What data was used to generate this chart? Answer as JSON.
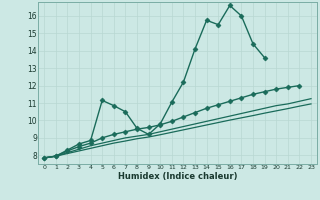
{
  "title": "",
  "xlabel": "Humidex (Indice chaleur)",
  "bg_color": "#cce8e4",
  "line_color": "#1a6b5a",
  "xlim": [
    -0.5,
    23.5
  ],
  "ylim": [
    7.5,
    16.8
  ],
  "xticks": [
    0,
    1,
    2,
    3,
    4,
    5,
    6,
    7,
    8,
    9,
    10,
    11,
    12,
    13,
    14,
    15,
    16,
    17,
    18,
    19,
    20,
    21,
    22,
    23
  ],
  "yticks": [
    8,
    9,
    10,
    11,
    12,
    13,
    14,
    15,
    16
  ],
  "grid_color": "#b8d8d2",
  "series": [
    {
      "x": [
        0,
        1,
        2,
        3,
        4,
        5,
        6,
        7,
        8,
        9,
        10,
        11,
        12,
        13,
        14,
        15,
        16,
        17,
        18,
        19
      ],
      "y": [
        7.85,
        7.95,
        8.3,
        8.65,
        8.85,
        11.15,
        10.85,
        10.5,
        9.55,
        9.2,
        9.8,
        11.05,
        12.2,
        14.1,
        15.75,
        15.5,
        16.6,
        16.0,
        14.4,
        13.6
      ],
      "marker": "D",
      "markersize": 2.5,
      "linewidth": 1.0
    },
    {
      "x": [
        0,
        1,
        2,
        3,
        4,
        5,
        6,
        7,
        8,
        9,
        10,
        11,
        12,
        13,
        14,
        15,
        16,
        17,
        18,
        19,
        20,
        21,
        22
      ],
      "y": [
        7.85,
        7.95,
        8.25,
        8.5,
        8.7,
        9.0,
        9.2,
        9.35,
        9.5,
        9.6,
        9.75,
        9.95,
        10.2,
        10.45,
        10.7,
        10.9,
        11.1,
        11.3,
        11.5,
        11.65,
        11.8,
        11.9,
        12.0
      ],
      "marker": "D",
      "markersize": 2.5,
      "linewidth": 1.0
    },
    {
      "x": [
        0,
        1,
        2,
        3,
        4,
        5,
        6,
        7,
        8,
        9,
        10,
        11,
        12,
        13,
        14,
        15,
        16,
        17,
        18,
        19,
        20,
        21,
        22,
        23
      ],
      "y": [
        7.85,
        7.95,
        8.15,
        8.35,
        8.55,
        8.7,
        8.85,
        9.0,
        9.1,
        9.2,
        9.35,
        9.5,
        9.65,
        9.8,
        9.95,
        10.1,
        10.25,
        10.4,
        10.55,
        10.7,
        10.85,
        10.95,
        11.1,
        11.25
      ],
      "marker": null,
      "linewidth": 0.9
    },
    {
      "x": [
        0,
        1,
        2,
        3,
        4,
        5,
        6,
        7,
        8,
        9,
        10,
        11,
        12,
        13,
        14,
        15,
        16,
        17,
        18,
        19,
        20,
        21,
        22,
        23
      ],
      "y": [
        7.85,
        7.95,
        8.1,
        8.25,
        8.4,
        8.55,
        8.7,
        8.82,
        8.95,
        9.05,
        9.18,
        9.32,
        9.46,
        9.6,
        9.74,
        9.88,
        10.02,
        10.15,
        10.28,
        10.42,
        10.55,
        10.68,
        10.82,
        10.95
      ],
      "marker": null,
      "linewidth": 0.9
    }
  ]
}
